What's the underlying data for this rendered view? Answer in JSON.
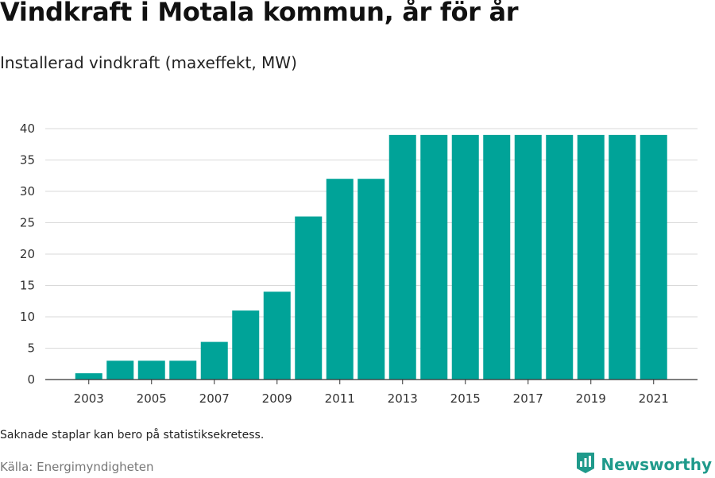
{
  "header": {
    "title": "Vindkraft i Motala kommun, år för år",
    "subtitle": "Installerad vindkraft (maxeffekt, MW)"
  },
  "footer": {
    "note": "Saknade staplar kan bero på statistiksekretess.",
    "source": "Källa: Energimyndigheten",
    "brand": "Newsworthy"
  },
  "colors": {
    "bar": "#00a398",
    "grid": "#d9d9d9",
    "axis": "#333333",
    "brand": "#1f9a8b"
  },
  "icons": {
    "brand_logo": "bar-chart-badge-icon"
  },
  "chart_data": {
    "type": "bar",
    "title": "Vindkraft i Motala kommun, år för år",
    "subtitle": "Installerad vindkraft (maxeffekt, MW)",
    "categories": [
      "2003",
      "2004",
      "2005",
      "2006",
      "2007",
      "2008",
      "2009",
      "2010",
      "2011",
      "2012",
      "2013",
      "2014",
      "2015",
      "2016",
      "2017",
      "2018",
      "2019",
      "2020",
      "2021"
    ],
    "values": [
      1,
      3,
      3,
      3,
      6,
      11,
      14,
      26,
      32,
      32,
      39,
      39,
      39,
      39,
      39,
      39,
      39,
      39,
      39
    ],
    "x_tick_labels": [
      "2003",
      "2005",
      "2007",
      "2009",
      "2011",
      "2013",
      "2015",
      "2017",
      "2019",
      "2021"
    ],
    "y_ticks": [
      0,
      5,
      10,
      15,
      20,
      25,
      30,
      35,
      40
    ],
    "ylim": [
      0,
      40
    ],
    "xlabel": "",
    "ylabel": "",
    "grid": true,
    "legend": "none"
  }
}
